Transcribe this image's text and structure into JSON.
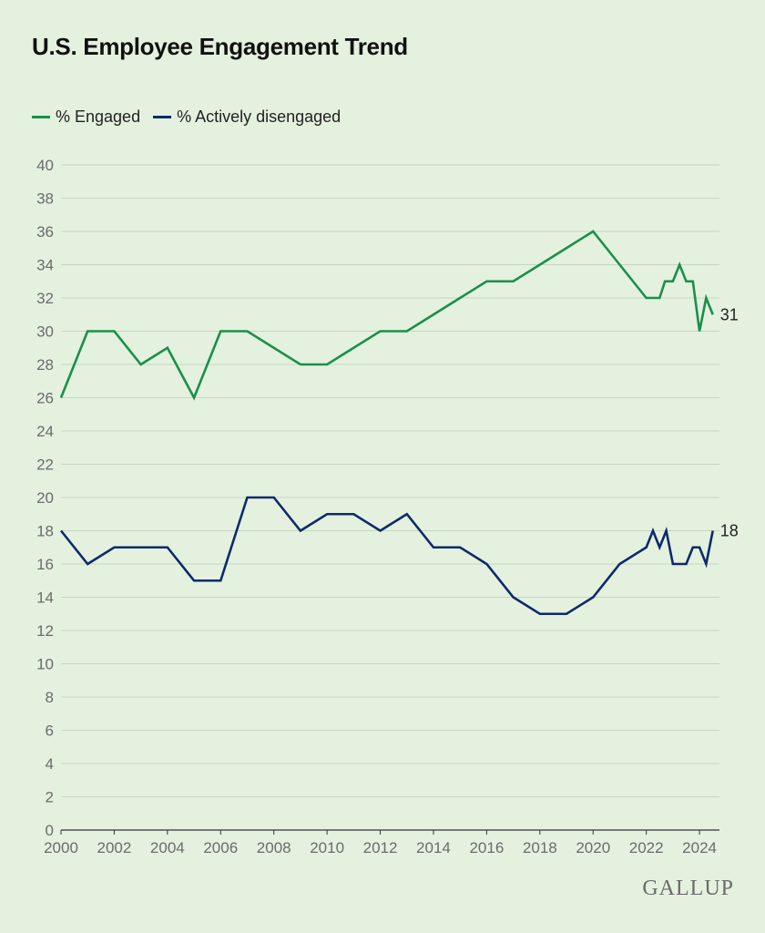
{
  "chart_data": {
    "type": "line",
    "title": "U.S. Employee Engagement Trend",
    "xlabel": "",
    "ylabel": "",
    "ylim": [
      0,
      40
    ],
    "xlim": [
      2000,
      2024.75
    ],
    "yticks": [
      0,
      2,
      4,
      6,
      8,
      10,
      12,
      14,
      16,
      18,
      20,
      22,
      24,
      26,
      28,
      30,
      32,
      34,
      36,
      38,
      40
    ],
    "xticks": [
      2000,
      2002,
      2004,
      2006,
      2008,
      2010,
      2012,
      2014,
      2016,
      2018,
      2020,
      2022,
      2024
    ],
    "grid": "horizontal",
    "legend_position": "top-left",
    "series": [
      {
        "name": "% Engaged",
        "color": "#1a8f4c",
        "x": [
          2000,
          2001,
          2002,
          2003,
          2004,
          2005,
          2006,
          2007,
          2008,
          2009,
          2010,
          2011,
          2012,
          2013,
          2014,
          2015,
          2016,
          2017,
          2018,
          2019,
          2020,
          2021,
          2022,
          2022.5,
          2022.7,
          2023,
          2023.25,
          2023.5,
          2023.75,
          2024,
          2024.25,
          2024.5
        ],
        "y": [
          26,
          30,
          30,
          28,
          29,
          26,
          30,
          30,
          29,
          28,
          28,
          29,
          30,
          30,
          31,
          32,
          33,
          33,
          34,
          35,
          36,
          34,
          32,
          32,
          33,
          33,
          34,
          33,
          33,
          30,
          32,
          31
        ],
        "end_label": "31"
      },
      {
        "name": "% Actively disengaged",
        "color": "#0d2a6b",
        "x": [
          2000,
          2001,
          2002,
          2003,
          2004,
          2005,
          2006,
          2007,
          2008,
          2009,
          2010,
          2011,
          2012,
          2013,
          2014,
          2015,
          2016,
          2017,
          2018,
          2019,
          2020,
          2021,
          2022,
          2022.25,
          2022.5,
          2022.75,
          2023,
          2023.5,
          2023.75,
          2024,
          2024.25,
          2024.5
        ],
        "y": [
          18,
          16,
          17,
          17,
          17,
          15,
          15,
          20,
          20,
          18,
          19,
          19,
          18,
          19,
          17,
          17,
          16,
          14,
          13,
          13,
          14,
          16,
          17,
          18,
          17,
          18,
          16,
          16,
          17,
          17,
          16,
          18
        ],
        "end_label": "18"
      }
    ]
  },
  "brand": "GALLUP"
}
